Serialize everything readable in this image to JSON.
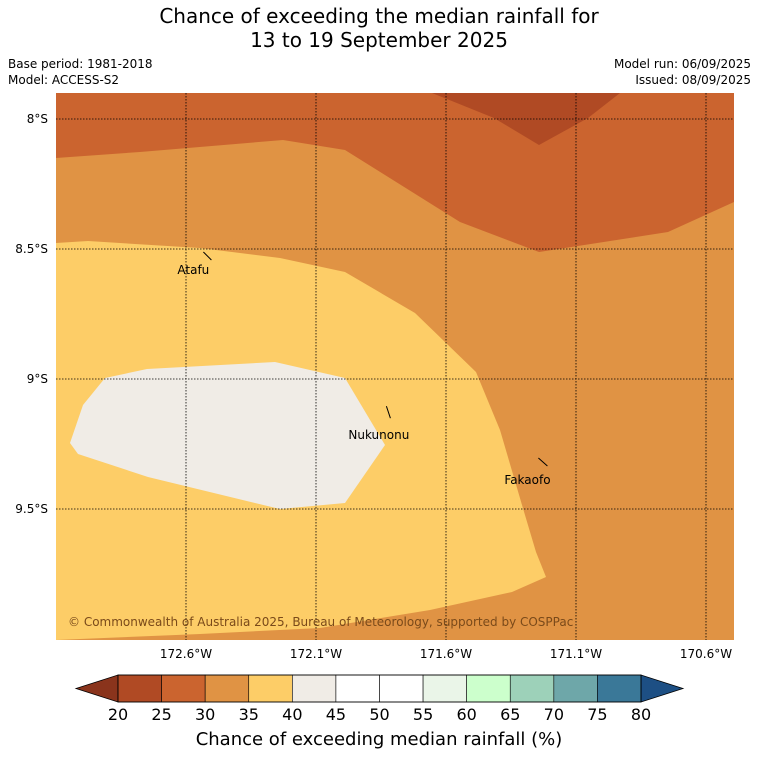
{
  "title_line1": "Chance of exceeding the median rainfall for",
  "title_line2": "13 to 19 September 2025",
  "base_period": "Base period: 1981-2018",
  "model": "Model: ACCESS-S2",
  "model_run": "Model run: 06/09/2025",
  "issued": "Issued: 08/09/2025",
  "copyright": "© Commonwealth of Australia 2025, Bureau of Meteorology, supported by COSPPac",
  "lat_labels": [
    "8°S",
    "8.5°S",
    "9°S",
    "9.5°S"
  ],
  "lon_labels": [
    "172.6°W",
    "172.1°W",
    "171.6°W",
    "171.1°W",
    "170.6°W"
  ],
  "places": [
    {
      "name": "Atafu",
      "lon": -172.51,
      "lat": -8.55
    },
    {
      "name": "Nukunonu",
      "lon": -171.81,
      "lat": -9.17
    },
    {
      "name": "Fakaofo",
      "lon": -171.21,
      "lat": -9.35
    }
  ],
  "colorbar": {
    "title": "Chance of exceeding median rainfall (%)",
    "ticks": [
      "20",
      "25",
      "30",
      "35",
      "40",
      "45",
      "50",
      "55",
      "60",
      "65",
      "70",
      "75",
      "80"
    ],
    "colors": [
      "#b04a24",
      "#cb642f",
      "#e09344",
      "#fdcd67",
      "#f0ece6",
      "#ffffff",
      "#ffffff",
      "#eaf5e8",
      "#ccffcc",
      "#9dd1b9",
      "#6ea7a9",
      "#3a7898"
    ],
    "under_color": "#8a341c",
    "over_color": "#1d4f84"
  },
  "map_colors": {
    "lt30": "#cb642f",
    "lt25": "#b04a24",
    "30to35": "#e09344",
    "35to40": "#fdcd67",
    "40to45": "#f0ece6"
  }
}
